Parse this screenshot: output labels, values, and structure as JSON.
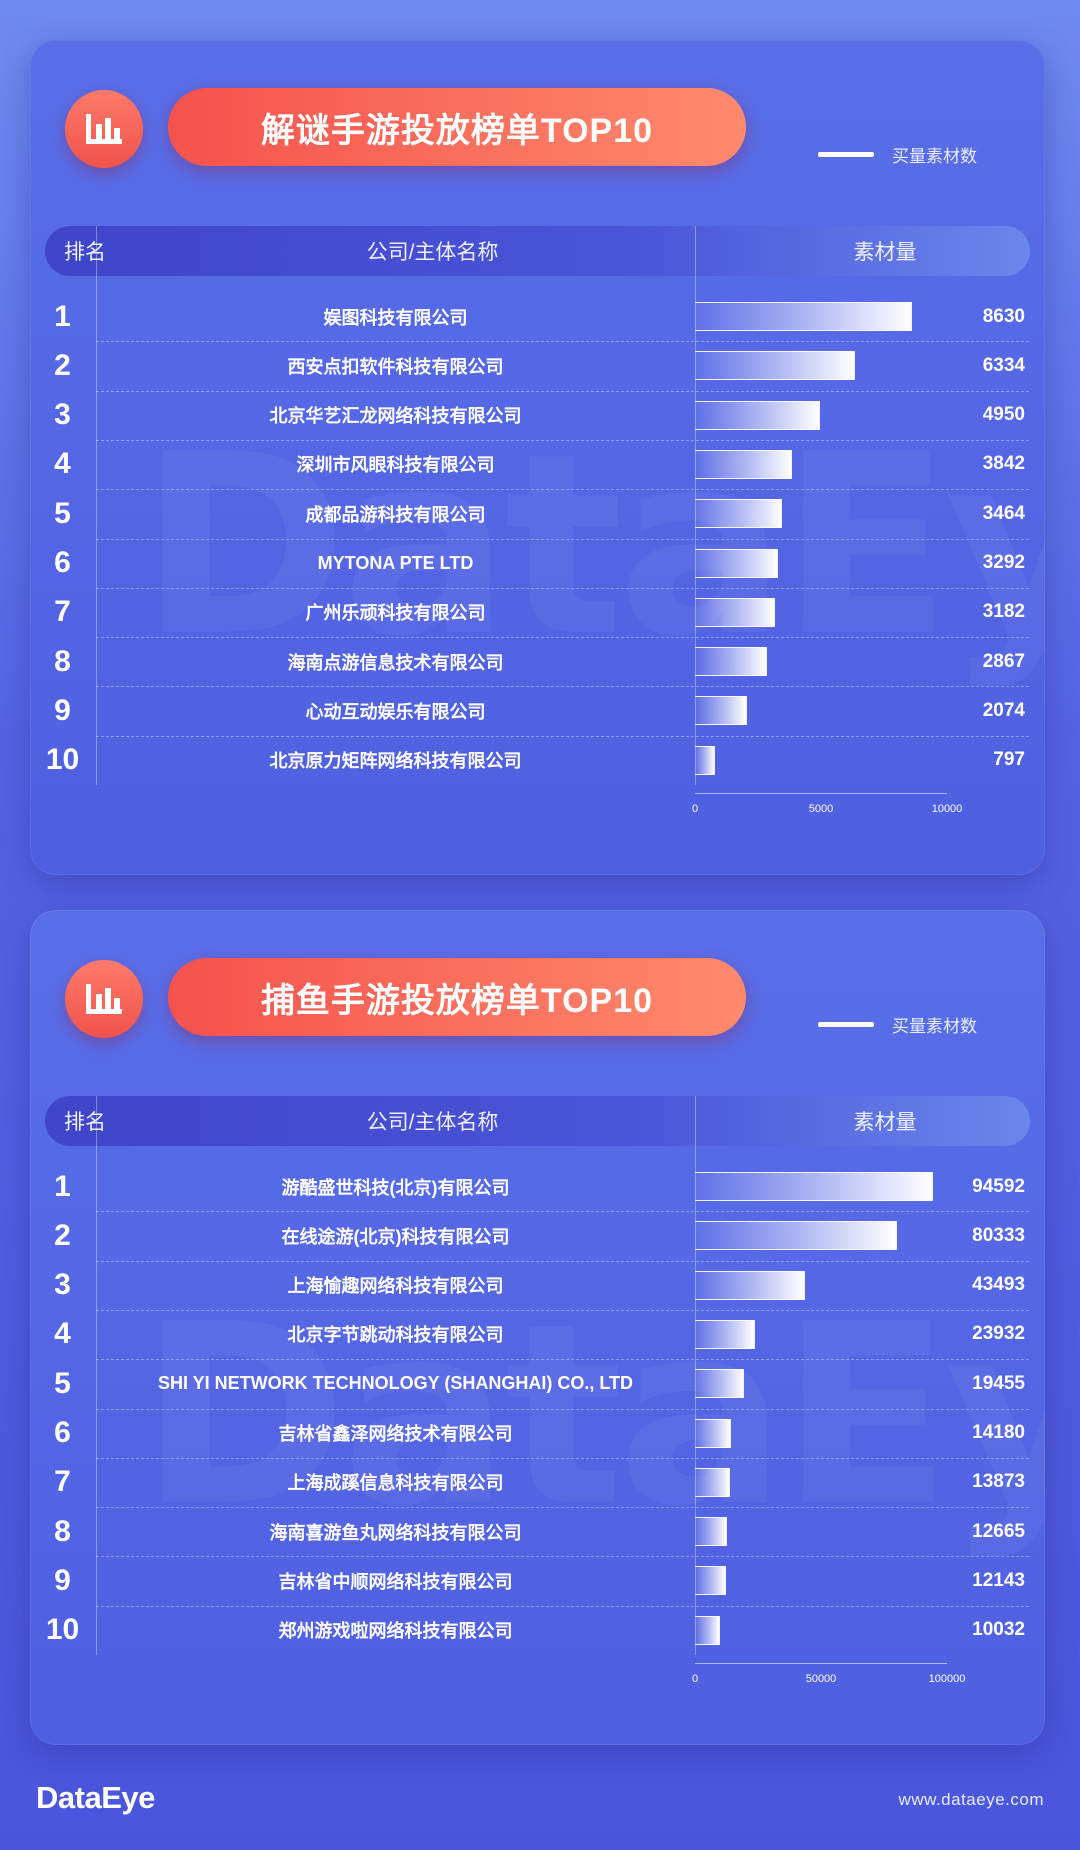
{
  "header_labels": {
    "rank": "排名",
    "company": "公司/主体名称",
    "amount": "素材量"
  },
  "legend_label": "买量素材数",
  "watermark": "DataEye",
  "footer": {
    "brand": "DataEye",
    "website": "www.dataeye.com"
  },
  "colors": {
    "accent": "#f5524d",
    "panel": "#5163e2",
    "bar": "#ffffff"
  },
  "icon": "bar-chart-icon",
  "chart_data": [
    {
      "type": "bar",
      "orientation": "horizontal",
      "title": "解谜手游投放榜单TOP10",
      "series_name": "买量素材数",
      "ranks": [
        "1",
        "2",
        "3",
        "4",
        "5",
        "6",
        "7",
        "8",
        "9",
        "10"
      ],
      "categories": [
        "娱图科技有限公司",
        "西安点扣软件科技有限公司",
        "北京华艺汇龙网络科技有限公司",
        "深圳市风眼科技有限公司",
        "成都品游科技有限公司",
        "MYTONA PTE LTD",
        "广州乐顽科技有限公司",
        "海南点游信息技术有限公司",
        "心动互动娱乐有限公司",
        "北京原力矩阵网络科技有限公司"
      ],
      "values": [
        8630,
        6334,
        4950,
        3842,
        3464,
        3292,
        3182,
        2867,
        2074,
        797
      ],
      "value_labels": [
        "8630",
        "6334",
        "4950",
        "3842",
        "3464",
        "3292",
        "3182",
        "2867",
        "2074",
        "797"
      ],
      "xlim": [
        0,
        10000
      ],
      "xticks": [
        0,
        5000,
        10000
      ],
      "xtick_labels": [
        "0",
        "5000",
        "10000"
      ]
    },
    {
      "type": "bar",
      "orientation": "horizontal",
      "title": "捕鱼手游投放榜单TOP10",
      "series_name": "买量素材数",
      "ranks": [
        "1",
        "2",
        "3",
        "4",
        "5",
        "6",
        "7",
        "8",
        "9",
        "10"
      ],
      "categories": [
        "游酷盛世科技(北京)有限公司",
        "在线途游(北京)科技有限公司",
        "上海愉趣网络科技有限公司",
        "北京字节跳动科技有限公司",
        "SHI YI NETWORK TECHNOLOGY (SHANGHAI) CO., LTD",
        "吉林省鑫泽网络技术有限公司",
        "上海成蹊信息科技有限公司",
        "海南喜游鱼丸网络科技有限公司",
        "吉林省中顺网络科技有限公司",
        "郑州游戏啦网络科技有限公司"
      ],
      "values": [
        94592,
        80333,
        43493,
        23932,
        19455,
        14180,
        13873,
        12665,
        12143,
        10032
      ],
      "value_labels": [
        "94592",
        "80333",
        "43493",
        "23932",
        "19455",
        "14180",
        "13873",
        "12665",
        "12143",
        "10032"
      ],
      "xlim": [
        0,
        100000
      ],
      "xticks": [
        0,
        50000,
        100000
      ],
      "xtick_labels": [
        "0",
        "50000",
        "100000"
      ]
    }
  ]
}
